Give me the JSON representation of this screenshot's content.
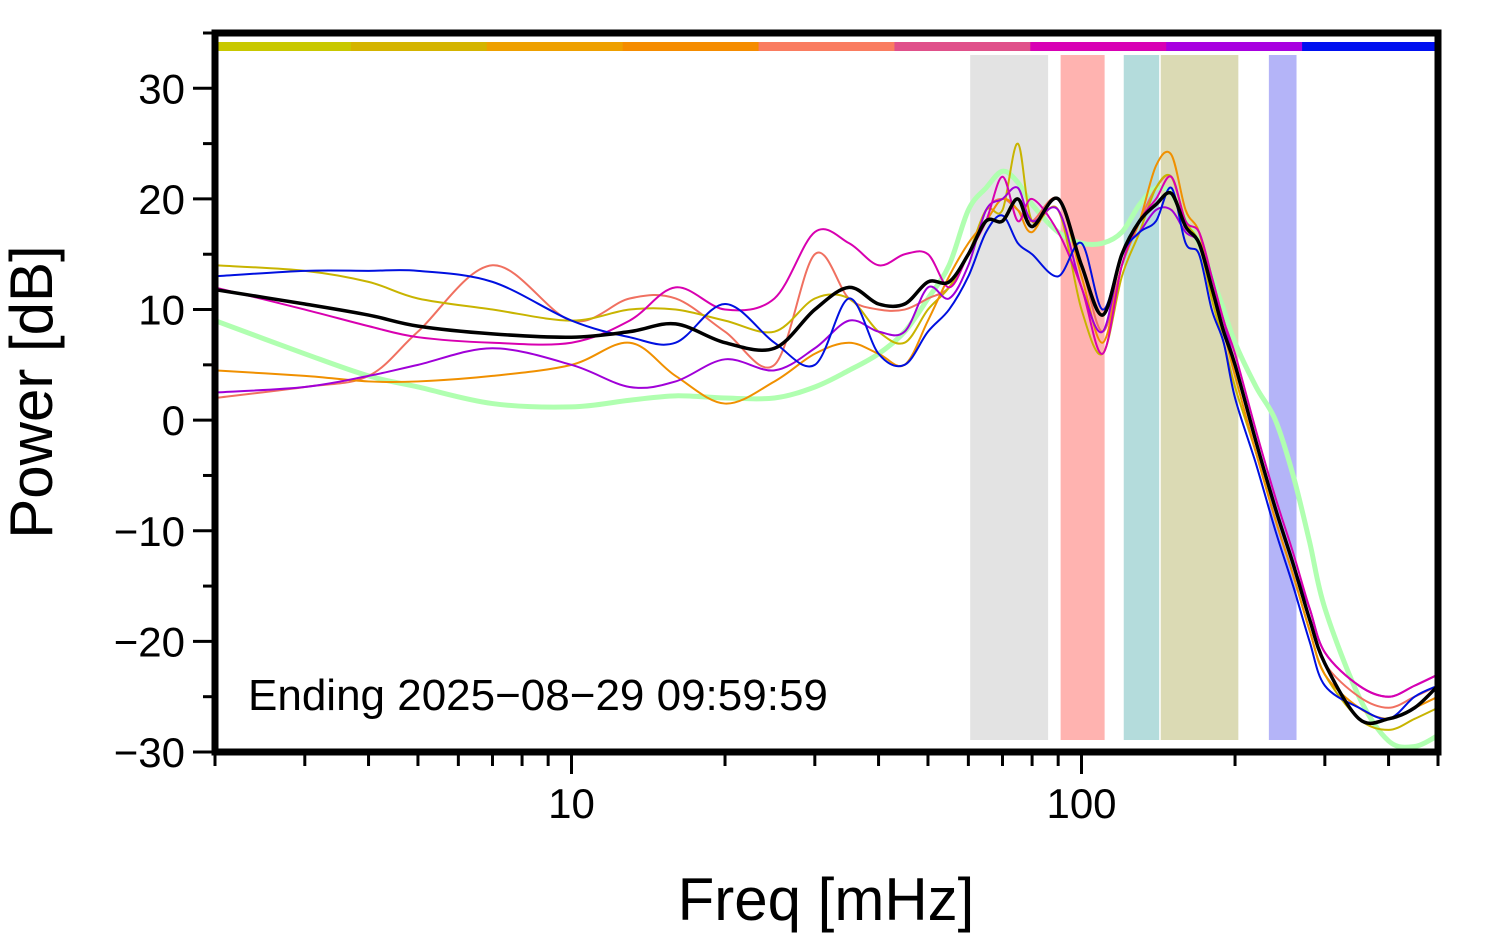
{
  "chart_data": {
    "type": "line",
    "xlabel": "Freq [mHz]",
    "ylabel": "Power [dB]",
    "annotation": "Ending 2025−08−29 09:59:59",
    "xscale": "log",
    "xlim": [
      2,
      500
    ],
    "xticks": [
      10,
      100
    ],
    "xticks_minor": [
      2,
      3,
      4,
      5,
      6,
      7,
      8,
      9,
      20,
      30,
      40,
      50,
      60,
      70,
      80,
      90,
      200,
      300,
      400,
      500
    ],
    "ylim": [
      -30,
      35
    ],
    "yticks": [
      30,
      20,
      10,
      0,
      {
        "value": -10,
        "label": "−10"
      },
      {
        "value": -20,
        "label": "−20"
      },
      {
        "value": -30,
        "label": "−30"
      }
    ],
    "yticks_minor": [
      35,
      25,
      15,
      5,
      -5,
      -15,
      -25
    ],
    "color_bar": [
      "#c8c800",
      "#d4b400",
      "#eea000",
      "#f58c00",
      "#fa7c60",
      "#e0508a",
      "#d800b4",
      "#a800e0",
      "#0010f0"
    ],
    "bands": [
      {
        "x0": 60.5,
        "x1": 86,
        "color": "#e3e3e3"
      },
      {
        "x0": 91,
        "x1": 111,
        "color": "#ffb3b0"
      },
      {
        "x0": 121,
        "x1": 142,
        "color": "#b4dcdc"
      },
      {
        "x0": 143,
        "x1": 203,
        "color": "#dbdab4"
      },
      {
        "x0": 233,
        "x1": 264,
        "color": "#b4b4f8"
      }
    ],
    "x": [
      2,
      3,
      4,
      5,
      7,
      10,
      13,
      16,
      20,
      25,
      30,
      35,
      40,
      45,
      50,
      55,
      60,
      65,
      70,
      75,
      80,
      90,
      100,
      110,
      120,
      130,
      140,
      150,
      160,
      170,
      180,
      190,
      200,
      220,
      240,
      260,
      280,
      300,
      350,
      400,
      450,
      500
    ],
    "series": [
      {
        "color": "#b0ffb0",
        "width": 5,
        "values": [
          9,
          6,
          4,
          3,
          1.5,
          1.2,
          1.8,
          2.2,
          2,
          2,
          3,
          4.5,
          6,
          8,
          11,
          14,
          19,
          21,
          22.5,
          21.5,
          19.5,
          17,
          16,
          16,
          17,
          19.5,
          21,
          20.5,
          18,
          16,
          13,
          10,
          7,
          3,
          0,
          -5,
          -11,
          -17,
          -25,
          -29,
          -29.5,
          -28.5
        ]
      },
      {
        "color": "#f07060",
        "width": 2,
        "values": [
          2,
          3,
          4,
          8,
          14,
          9,
          11,
          11,
          8,
          5,
          15,
          11,
          10,
          10,
          11,
          12,
          15,
          19,
          20,
          19,
          18,
          20,
          14,
          8,
          14,
          18,
          21,
          22,
          18,
          17,
          13,
          9,
          5,
          -2,
          -8,
          -13,
          -18,
          -22,
          -25,
          -26,
          -25,
          -24
        ]
      },
      {
        "color": "#c8b400",
        "width": 2,
        "values": [
          14,
          13.5,
          12.5,
          11,
          10,
          9,
          10,
          10,
          9,
          8,
          11,
          11,
          8,
          7,
          10,
          12,
          15,
          19,
          19,
          25,
          18,
          19,
          10,
          6,
          13,
          17,
          21,
          22,
          18,
          16,
          11,
          7,
          3,
          -3,
          -9,
          -14,
          -19,
          -23,
          -27,
          -28,
          -27,
          -26
        ]
      },
      {
        "color": "#f09000",
        "width": 2,
        "values": [
          4.5,
          4,
          3.5,
          3.5,
          4,
          5,
          7,
          4,
          1.5,
          3.5,
          6,
          7,
          6,
          5,
          9,
          13,
          16,
          18,
          20,
          19,
          17,
          20,
          13,
          7,
          14,
          18,
          23,
          24,
          19,
          17,
          12,
          8,
          4,
          -3,
          -9,
          -14,
          -19,
          -23,
          -26,
          -27,
          -26,
          -25
        ]
      },
      {
        "color": "#a000d8",
        "width": 2,
        "values": [
          2.5,
          3,
          4,
          5,
          6.5,
          5,
          3,
          3.5,
          5.5,
          4.5,
          6.5,
          9,
          8,
          8,
          12,
          11,
          14,
          19,
          20,
          21,
          18,
          19,
          12,
          8,
          15,
          17,
          19,
          19,
          17,
          16,
          12,
          9,
          5,
          -2,
          -8,
          -13,
          -17,
          -21,
          -24,
          -25,
          -24,
          -23
        ]
      },
      {
        "color": "#d800b0",
        "width": 2,
        "values": [
          12,
          10,
          8.5,
          7.5,
          7,
          7,
          9,
          12,
          10,
          11,
          17,
          16,
          14,
          15,
          15,
          12,
          15,
          18,
          22,
          18,
          20,
          17,
          12,
          6,
          14,
          18,
          20,
          22,
          18,
          17,
          13,
          9,
          6,
          -1,
          -7,
          -12,
          -17,
          -21,
          -24,
          -25,
          -24,
          -23
        ]
      },
      {
        "color": "#0010e0",
        "width": 2,
        "values": [
          13,
          13.5,
          13.5,
          13.5,
          12.5,
          9,
          7.5,
          7,
          10.5,
          7,
          5,
          11,
          6,
          5,
          8,
          10,
          13,
          17,
          18.5,
          16,
          15,
          13,
          16,
          10,
          15,
          17,
          18,
          21,
          16,
          15,
          10,
          7,
          2,
          -4,
          -10,
          -15,
          -20,
          -24,
          -26,
          -27,
          -25,
          -24
        ]
      },
      {
        "color": "#000000",
        "width": 3.5,
        "values": [
          11.8,
          10.5,
          9.5,
          8.5,
          7.8,
          7.5,
          8,
          8.7,
          7,
          6.5,
          10,
          12,
          10.5,
          10.5,
          12.5,
          12.5,
          15,
          18,
          18,
          20,
          17.5,
          20,
          14,
          9.5,
          15,
          18,
          19.5,
          20.5,
          17.5,
          16,
          12,
          8,
          5,
          -2,
          -8,
          -13,
          -18,
          -22,
          -27,
          -27,
          -26,
          -24
        ]
      }
    ]
  }
}
